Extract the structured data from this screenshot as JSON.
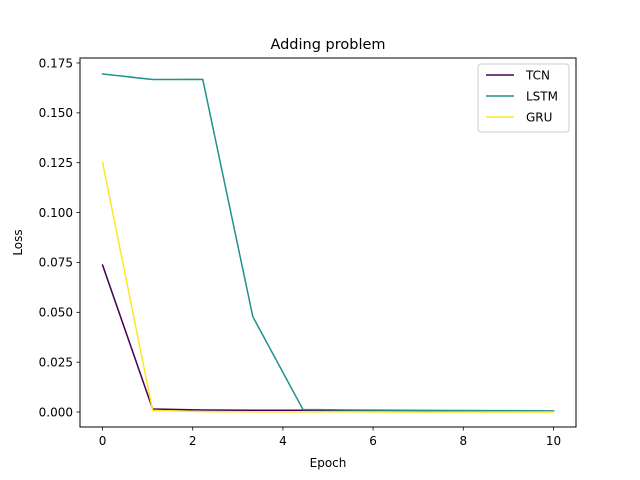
{
  "chart_data": {
    "type": "line",
    "title": "Adding problem",
    "xlabel": "Epoch",
    "ylabel": "Loss",
    "xlim": [
      -0.5,
      10.5
    ],
    "ylim": [
      -0.0075,
      0.1775
    ],
    "xticks": [
      0,
      2,
      4,
      6,
      8,
      10
    ],
    "yticks": [
      0.0,
      0.025,
      0.05,
      0.075,
      0.1,
      0.125,
      0.15,
      0.175
    ],
    "ytick_labels": [
      "0.000",
      "0.025",
      "0.050",
      "0.075",
      "0.100",
      "0.125",
      "0.150",
      "0.175"
    ],
    "grid": false,
    "legend_position": "top-right",
    "series": [
      {
        "name": "TCN",
        "color": "#440154",
        "x": [
          0,
          1.111,
          2.222,
          3.333,
          4.444,
          5.556,
          6.667,
          7.778,
          8.889,
          10
        ],
        "y": [
          0.0737,
          0.0015,
          0.001,
          0.0009,
          0.0009,
          0.0008,
          0.0007,
          0.0006,
          0.0005,
          0.0004
        ]
      },
      {
        "name": "LSTM",
        "color": "#21918c",
        "x": [
          0,
          1.111,
          2.222,
          3.333,
          4.444,
          5.556,
          6.667,
          7.778,
          8.889,
          10
        ],
        "y": [
          0.1695,
          0.1667,
          0.1668,
          0.0478,
          0.0013,
          0.001,
          0.0009,
          0.0008,
          0.0007,
          0.0006
        ]
      },
      {
        "name": "GRU",
        "color": "#fde725",
        "x": [
          0,
          1.111,
          2.222,
          3.333,
          4.444,
          5.556,
          6.667,
          7.778,
          8.889,
          10
        ],
        "y": [
          0.1252,
          0.0008,
          0.0002,
          0.0001,
          0.0001,
          0.0001,
          0.0,
          0.0,
          0.0,
          0.0
        ]
      }
    ]
  }
}
